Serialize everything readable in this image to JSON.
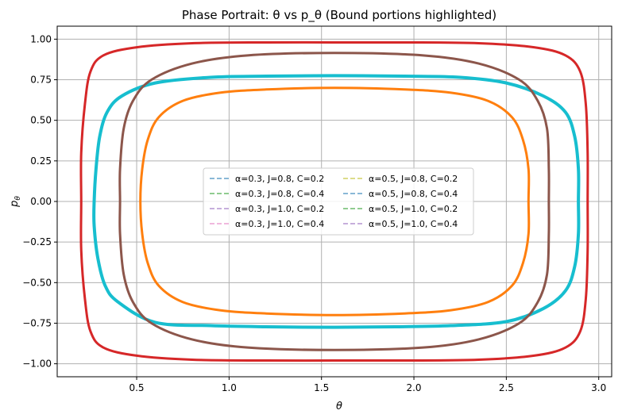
{
  "chart_data": {
    "type": "line",
    "title": "Phase Portrait: θ vs p_θ (Bound portions highlighted)",
    "xlabel": "θ",
    "ylabel": "p",
    "ylabel_sub": "θ",
    "xlim": [
      0.07,
      3.07
    ],
    "ylim": [
      -1.08,
      1.08
    ],
    "xticks": [
      0.5,
      1.0,
      1.5,
      2.0,
      2.5,
      3.0
    ],
    "xtick_labels": [
      "0.5",
      "1.0",
      "1.5",
      "2.0",
      "2.5",
      "3.0"
    ],
    "yticks": [
      -1.0,
      -0.75,
      -0.5,
      -0.25,
      0.0,
      0.25,
      0.5,
      0.75,
      1.0
    ],
    "ytick_labels": [
      "−1.00",
      "−0.75",
      "−0.50",
      "−0.25",
      "0.00",
      "0.25",
      "0.50",
      "0.75",
      "1.00"
    ],
    "grid": true,
    "legend_placement": "center",
    "legend_columns": 2,
    "legend": [
      {
        "label": "α=0.3, J=0.8, C=0.2",
        "color": "#1f77b4"
      },
      {
        "label": "α=0.3, J=0.8, C=0.4",
        "color": "#2ca02c"
      },
      {
        "label": "α=0.3, J=1.0, C=0.2",
        "color": "#9467bd"
      },
      {
        "label": "α=0.3, J=1.0, C=0.4",
        "color": "#e377c2"
      },
      {
        "label": "α=0.5, J=0.8, C=0.2",
        "color": "#bcbd22"
      },
      {
        "label": "α=0.5, J=0.8, C=0.4",
        "color": "#1f77b4"
      },
      {
        "label": "α=0.5, J=1.0, C=0.2",
        "color": "#2ca02c"
      },
      {
        "label": "α=0.5, J=1.0, C=0.4",
        "color": "#9467bd"
      }
    ],
    "series": [
      {
        "color": "#d62728",
        "width": 3,
        "points": [
          [
            0.2,
            0.0
          ],
          [
            0.2,
            0.3
          ],
          [
            0.22,
            0.6
          ],
          [
            0.25,
            0.8
          ],
          [
            0.32,
            0.9
          ],
          [
            0.5,
            0.95
          ],
          [
            0.8,
            0.975
          ],
          [
            1.2,
            0.98
          ],
          [
            1.57,
            0.98
          ],
          [
            1.95,
            0.98
          ],
          [
            2.35,
            0.975
          ],
          [
            2.65,
            0.95
          ],
          [
            2.82,
            0.9
          ],
          [
            2.9,
            0.8
          ],
          [
            2.93,
            0.6
          ],
          [
            2.94,
            0.3
          ],
          [
            2.94,
            0.0
          ],
          [
            2.94,
            -0.3
          ],
          [
            2.93,
            -0.6
          ],
          [
            2.9,
            -0.8
          ],
          [
            2.82,
            -0.9
          ],
          [
            2.65,
            -0.95
          ],
          [
            2.35,
            -0.975
          ],
          [
            1.95,
            -0.98
          ],
          [
            1.57,
            -0.98
          ],
          [
            1.2,
            -0.98
          ],
          [
            0.8,
            -0.975
          ],
          [
            0.5,
            -0.95
          ],
          [
            0.32,
            -0.9
          ],
          [
            0.25,
            -0.8
          ],
          [
            0.22,
            -0.6
          ],
          [
            0.2,
            -0.3
          ],
          [
            0.2,
            0.0
          ]
        ]
      },
      {
        "color": "#17becf",
        "width": 4,
        "points": [
          [
            0.27,
            0.0
          ],
          [
            0.28,
            0.2
          ],
          [
            0.3,
            0.4
          ],
          [
            0.34,
            0.55
          ],
          [
            0.42,
            0.65
          ],
          [
            0.6,
            0.73
          ],
          [
            0.9,
            0.765
          ],
          [
            1.2,
            0.772
          ],
          [
            1.57,
            0.775
          ],
          [
            1.95,
            0.772
          ],
          [
            2.25,
            0.765
          ],
          [
            2.5,
            0.73
          ],
          [
            2.7,
            0.65
          ],
          [
            2.82,
            0.55
          ],
          [
            2.87,
            0.4
          ],
          [
            2.89,
            0.2
          ],
          [
            2.89,
            0.0
          ],
          [
            2.89,
            -0.2
          ],
          [
            2.87,
            -0.4
          ],
          [
            2.82,
            -0.55
          ],
          [
            2.7,
            -0.66
          ],
          [
            2.5,
            -0.74
          ],
          [
            2.2,
            -0.765
          ],
          [
            1.9,
            -0.772
          ],
          [
            1.57,
            -0.775
          ],
          [
            1.2,
            -0.772
          ],
          [
            0.9,
            -0.765
          ],
          [
            0.6,
            -0.745
          ],
          [
            0.4,
            -0.62
          ],
          [
            0.33,
            -0.52
          ],
          [
            0.29,
            -0.35
          ],
          [
            0.27,
            -0.15
          ],
          [
            0.27,
            0.0
          ]
        ]
      },
      {
        "color": "#8c564b",
        "width": 3,
        "points": [
          [
            0.41,
            0.0
          ],
          [
            0.41,
            0.2
          ],
          [
            0.43,
            0.45
          ],
          [
            0.48,
            0.62
          ],
          [
            0.58,
            0.75
          ],
          [
            0.8,
            0.85
          ],
          [
            1.1,
            0.9
          ],
          [
            1.57,
            0.915
          ],
          [
            2.05,
            0.9
          ],
          [
            2.35,
            0.85
          ],
          [
            2.57,
            0.75
          ],
          [
            2.67,
            0.62
          ],
          [
            2.72,
            0.45
          ],
          [
            2.73,
            0.2
          ],
          [
            2.73,
            0.0
          ],
          [
            2.73,
            -0.2
          ],
          [
            2.72,
            -0.45
          ],
          [
            2.67,
            -0.62
          ],
          [
            2.57,
            -0.75
          ],
          [
            2.35,
            -0.85
          ],
          [
            2.05,
            -0.9
          ],
          [
            1.57,
            -0.915
          ],
          [
            1.1,
            -0.9
          ],
          [
            0.8,
            -0.85
          ],
          [
            0.58,
            -0.75
          ],
          [
            0.48,
            -0.62
          ],
          [
            0.43,
            -0.45
          ],
          [
            0.41,
            -0.2
          ],
          [
            0.41,
            0.0
          ]
        ]
      },
      {
        "color": "#ff7f0e",
        "width": 3,
        "points": [
          [
            0.52,
            0.0
          ],
          [
            0.53,
            0.2
          ],
          [
            0.56,
            0.38
          ],
          [
            0.62,
            0.52
          ],
          [
            0.75,
            0.62
          ],
          [
            0.95,
            0.67
          ],
          [
            1.2,
            0.69
          ],
          [
            1.57,
            0.7
          ],
          [
            1.95,
            0.69
          ],
          [
            2.2,
            0.67
          ],
          [
            2.4,
            0.62
          ],
          [
            2.53,
            0.52
          ],
          [
            2.59,
            0.38
          ],
          [
            2.62,
            0.2
          ],
          [
            2.62,
            0.0
          ],
          [
            2.62,
            -0.2
          ],
          [
            2.59,
            -0.38
          ],
          [
            2.53,
            -0.52
          ],
          [
            2.4,
            -0.62
          ],
          [
            2.2,
            -0.67
          ],
          [
            1.95,
            -0.69
          ],
          [
            1.57,
            -0.7
          ],
          [
            1.2,
            -0.69
          ],
          [
            0.95,
            -0.67
          ],
          [
            0.75,
            -0.62
          ],
          [
            0.62,
            -0.52
          ],
          [
            0.56,
            -0.38
          ],
          [
            0.53,
            -0.2
          ],
          [
            0.52,
            0.0
          ]
        ]
      }
    ]
  }
}
